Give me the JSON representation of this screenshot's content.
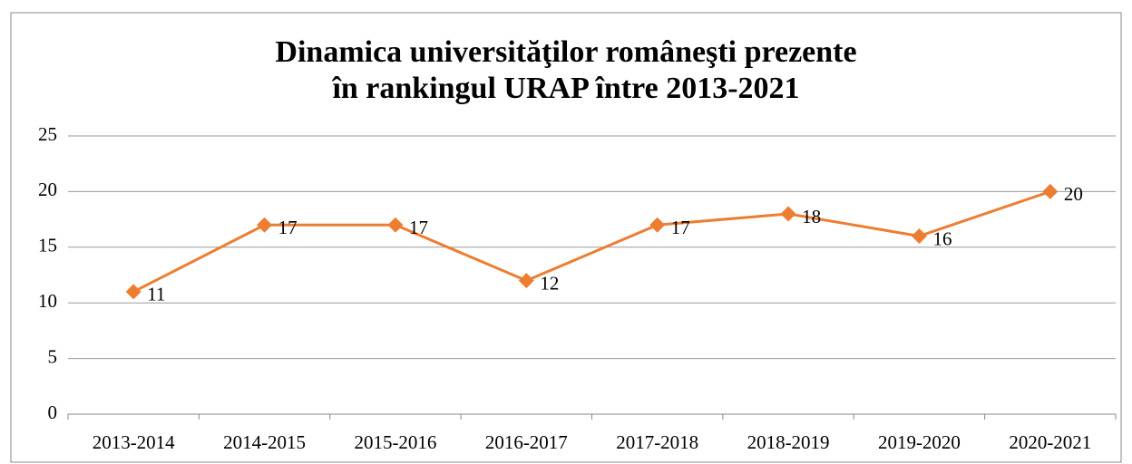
{
  "chart_data": {
    "type": "line",
    "title": "Dinamica universităţilor româneşti prezente în rankingul URAP între 2013-2021",
    "categories": [
      "2013-2014",
      "2014-2015",
      "2015-2016",
      "2016-2017",
      "2017-2018",
      "2018-2019",
      "2019-2020",
      "2020-2021"
    ],
    "series": [
      {
        "name": null,
        "color": "#ed7d31",
        "values": [
          11,
          17,
          17,
          12,
          17,
          18,
          16,
          20
        ]
      }
    ],
    "ylim": [
      0,
      25
    ],
    "yticks": [
      0,
      5,
      10,
      15,
      20,
      25
    ],
    "grid": true,
    "data_labels": true
  }
}
